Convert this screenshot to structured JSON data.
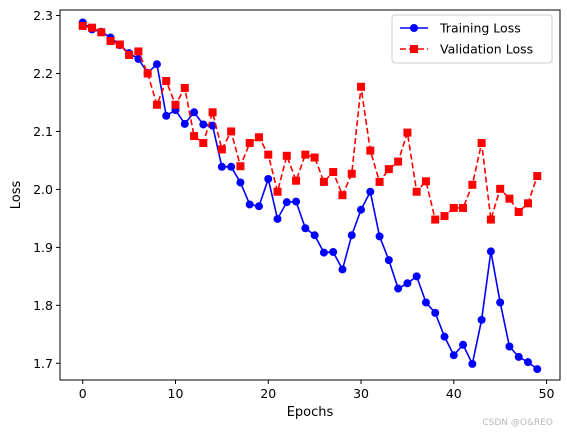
{
  "chart_data": {
    "type": "line",
    "xlabel": "Epochs",
    "ylabel": "Loss",
    "xlim": [
      -2.45,
      51.45
    ],
    "ylim": [
      1.6712,
      2.3095
    ],
    "xticks": [
      0,
      10,
      20,
      30,
      40,
      50
    ],
    "yticks": [
      1.7,
      1.8,
      1.9,
      2.0,
      2.1,
      2.2,
      2.3
    ],
    "legend_position": "top-right",
    "grid": false,
    "x": [
      0,
      1,
      2,
      3,
      4,
      5,
      6,
      7,
      8,
      9,
      10,
      11,
      12,
      13,
      14,
      15,
      16,
      17,
      18,
      19,
      20,
      21,
      22,
      23,
      24,
      25,
      26,
      27,
      28,
      29,
      30,
      31,
      32,
      33,
      34,
      35,
      36,
      37,
      38,
      39,
      40,
      41,
      42,
      43,
      44,
      45,
      46,
      47,
      48,
      49
    ],
    "series": [
      {
        "name": "Training Loss",
        "color": "#0000ff",
        "line_style": "solid",
        "marker": "circle",
        "values": [
          2.288,
          2.276,
          2.272,
          2.262,
          2.249,
          2.235,
          2.225,
          2.201,
          2.216,
          2.127,
          2.137,
          2.113,
          2.133,
          2.112,
          2.11,
          2.039,
          2.039,
          2.012,
          1.974,
          1.971,
          2.018,
          1.949,
          1.978,
          1.979,
          1.933,
          1.921,
          1.891,
          1.892,
          1.862,
          1.921,
          1.965,
          1.996,
          1.919,
          1.878,
          1.829,
          1.838,
          1.85,
          1.805,
          1.787,
          1.746,
          1.714,
          1.732,
          1.699,
          1.775,
          1.893,
          1.805,
          1.729,
          1.711,
          1.702,
          1.69
        ]
      },
      {
        "name": "Validation Loss",
        "color": "#ff0000",
        "line_style": "dashed",
        "marker": "square",
        "values": [
          2.282,
          2.279,
          2.271,
          2.256,
          2.25,
          2.232,
          2.238,
          2.2,
          2.146,
          2.187,
          2.146,
          2.175,
          2.092,
          2.08,
          2.133,
          2.069,
          2.1,
          2.04,
          2.08,
          2.09,
          2.06,
          1.996,
          2.058,
          2.015,
          2.06,
          2.055,
          2.013,
          2.03,
          1.99,
          2.027,
          2.177,
          2.067,
          2.013,
          2.035,
          2.048,
          2.098,
          1.996,
          2.014,
          1.948,
          1.954,
          1.968,
          1.968,
          2.008,
          2.08,
          1.948,
          2.001,
          1.984,
          1.961,
          1.976,
          2.023
        ]
      }
    ]
  },
  "watermark": "CSDN @O&REO"
}
